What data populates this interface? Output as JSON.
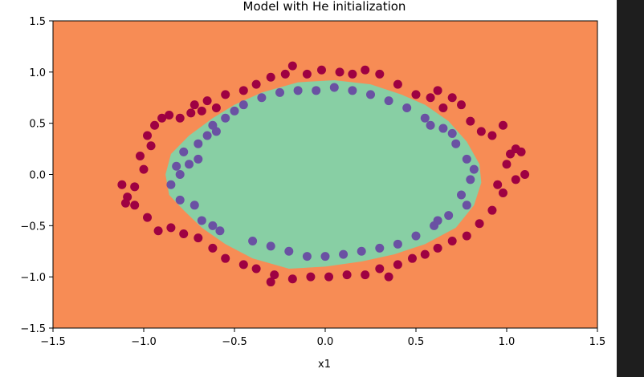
{
  "chart_data": {
    "type": "scatter",
    "title": "Model with He initialization",
    "xlabel": "x1",
    "ylabel": "",
    "xlim": [
      -1.5,
      1.5
    ],
    "ylim": [
      -1.5,
      1.5
    ],
    "x_ticks": [
      "−1.5",
      "−1.0",
      "−0.5",
      "0.0",
      "0.5",
      "1.0",
      "1.5"
    ],
    "y_ticks": [
      "−1.5",
      "−1.0",
      "−0.5",
      "0.0",
      "0.5",
      "1.0",
      "1.5"
    ],
    "x_tick_values": [
      -1.5,
      -1.0,
      -0.5,
      0.0,
      0.5,
      1.0,
      1.5
    ],
    "y_tick_values": [
      -1.5,
      -1.0,
      -0.5,
      0.0,
      0.5,
      1.0,
      1.5
    ],
    "grid": false,
    "colors": {
      "background_region": "#f78c55",
      "inner_region": "#88cfa4",
      "outer_class": "#9e0142",
      "inner_class": "#6a51a3"
    },
    "inner_region_boundary": [
      [
        -0.88,
        0.0
      ],
      [
        -0.85,
        0.2
      ],
      [
        -0.75,
        0.38
      ],
      [
        -0.62,
        0.55
      ],
      [
        -0.5,
        0.68
      ],
      [
        -0.35,
        0.8
      ],
      [
        -0.15,
        0.9
      ],
      [
        0.05,
        0.92
      ],
      [
        0.25,
        0.88
      ],
      [
        0.42,
        0.78
      ],
      [
        0.55,
        0.68
      ],
      [
        0.68,
        0.52
      ],
      [
        0.78,
        0.32
      ],
      [
        0.85,
        0.1
      ],
      [
        0.86,
        -0.08
      ],
      [
        0.82,
        -0.3
      ],
      [
        0.72,
        -0.52
      ],
      [
        0.55,
        -0.68
      ],
      [
        0.38,
        -0.78
      ],
      [
        0.2,
        -0.85
      ],
      [
        0.0,
        -0.9
      ],
      [
        -0.2,
        -0.92
      ],
      [
        -0.4,
        -0.82
      ],
      [
        -0.55,
        -0.68
      ],
      [
        -0.68,
        -0.52
      ],
      [
        -0.78,
        -0.35
      ],
      [
        -0.86,
        -0.2
      ]
    ],
    "series": [
      {
        "class": "outer",
        "points": [
          [
            -1.12,
            -0.1
          ],
          [
            -1.09,
            -0.22
          ],
          [
            -1.05,
            -0.12
          ],
          [
            -1.02,
            0.18
          ],
          [
            -0.98,
            0.38
          ],
          [
            -0.96,
            0.28
          ],
          [
            -0.94,
            0.48
          ],
          [
            -0.9,
            0.55
          ],
          [
            -0.86,
            0.58
          ],
          [
            -0.8,
            0.55
          ],
          [
            -0.74,
            0.6
          ],
          [
            -0.72,
            0.68
          ],
          [
            -0.65,
            0.72
          ],
          [
            -0.6,
            0.65
          ],
          [
            -0.55,
            0.78
          ],
          [
            -0.45,
            0.82
          ],
          [
            -0.38,
            0.88
          ],
          [
            -0.3,
            0.95
          ],
          [
            -0.22,
            0.98
          ],
          [
            -0.18,
            1.06
          ],
          [
            -0.1,
            0.98
          ],
          [
            -0.02,
            1.02
          ],
          [
            0.08,
            1.0
          ],
          [
            0.15,
            0.98
          ],
          [
            0.22,
            1.02
          ],
          [
            0.3,
            0.98
          ],
          [
            0.4,
            0.88
          ],
          [
            0.5,
            0.78
          ],
          [
            0.58,
            0.75
          ],
          [
            0.62,
            0.82
          ],
          [
            0.7,
            0.75
          ],
          [
            0.75,
            0.68
          ],
          [
            0.8,
            0.52
          ],
          [
            0.86,
            0.42
          ],
          [
            0.92,
            0.38
          ],
          [
            0.98,
            0.48
          ],
          [
            1.02,
            0.2
          ],
          [
            1.05,
            0.25
          ],
          [
            1.08,
            0.22
          ],
          [
            1.1,
            0.0
          ],
          [
            1.05,
            -0.05
          ],
          [
            0.98,
            -0.18
          ],
          [
            0.92,
            -0.35
          ],
          [
            0.85,
            -0.48
          ],
          [
            0.78,
            -0.6
          ],
          [
            0.7,
            -0.65
          ],
          [
            0.62,
            -0.72
          ],
          [
            0.55,
            -0.78
          ],
          [
            0.48,
            -0.82
          ],
          [
            0.4,
            -0.88
          ],
          [
            0.3,
            -0.92
          ],
          [
            0.22,
            -0.98
          ],
          [
            0.12,
            -0.98
          ],
          [
            0.02,
            -1.0
          ],
          [
            -0.08,
            -1.0
          ],
          [
            -0.18,
            -1.02
          ],
          [
            -0.28,
            -0.98
          ],
          [
            -0.38,
            -0.92
          ],
          [
            -0.45,
            -0.88
          ],
          [
            -0.55,
            -0.82
          ],
          [
            -0.62,
            -0.72
          ],
          [
            -0.7,
            -0.62
          ],
          [
            -0.78,
            -0.58
          ],
          [
            -0.85,
            -0.52
          ],
          [
            -0.92,
            -0.55
          ],
          [
            -0.98,
            -0.42
          ],
          [
            -1.05,
            -0.3
          ],
          [
            -1.1,
            -0.28
          ],
          [
            0.95,
            -0.1
          ],
          [
            1.0,
            0.1
          ],
          [
            -1.0,
            0.05
          ],
          [
            0.35,
            -1.0
          ],
          [
            -0.3,
            -1.05
          ],
          [
            0.65,
            0.65
          ],
          [
            -0.68,
            0.62
          ]
        ]
      },
      {
        "class": "inner",
        "points": [
          [
            -0.85,
            -0.1
          ],
          [
            -0.82,
            0.08
          ],
          [
            -0.8,
            -0.25
          ],
          [
            -0.78,
            0.22
          ],
          [
            -0.75,
            0.1
          ],
          [
            -0.72,
            -0.3
          ],
          [
            -0.7,
            0.3
          ],
          [
            -0.68,
            -0.45
          ],
          [
            -0.65,
            0.38
          ],
          [
            -0.62,
            -0.5
          ],
          [
            -0.6,
            0.42
          ],
          [
            -0.58,
            -0.55
          ],
          [
            -0.55,
            0.55
          ],
          [
            -0.5,
            0.62
          ],
          [
            -0.45,
            0.68
          ],
          [
            -0.4,
            -0.65
          ],
          [
            -0.35,
            0.75
          ],
          [
            -0.3,
            -0.7
          ],
          [
            -0.25,
            0.8
          ],
          [
            -0.2,
            -0.75
          ],
          [
            -0.15,
            0.82
          ],
          [
            -0.1,
            -0.8
          ],
          [
            -0.05,
            0.82
          ],
          [
            0.0,
            -0.8
          ],
          [
            0.05,
            0.85
          ],
          [
            0.1,
            -0.78
          ],
          [
            0.15,
            0.82
          ],
          [
            0.2,
            -0.75
          ],
          [
            0.25,
            0.78
          ],
          [
            0.3,
            -0.72
          ],
          [
            0.35,
            0.72
          ],
          [
            0.4,
            -0.68
          ],
          [
            0.45,
            0.65
          ],
          [
            0.5,
            -0.6
          ],
          [
            0.55,
            0.55
          ],
          [
            0.6,
            -0.5
          ],
          [
            0.65,
            0.45
          ],
          [
            0.68,
            -0.4
          ],
          [
            0.72,
            0.3
          ],
          [
            0.75,
            -0.2
          ],
          [
            0.78,
            0.15
          ],
          [
            0.8,
            -0.05
          ],
          [
            0.82,
            0.05
          ],
          [
            0.78,
            -0.3
          ],
          [
            0.7,
            0.4
          ],
          [
            -0.8,
            0.0
          ],
          [
            -0.7,
            0.15
          ],
          [
            0.62,
            -0.45
          ],
          [
            0.58,
            0.48
          ],
          [
            -0.62,
            0.48
          ]
        ]
      }
    ]
  }
}
